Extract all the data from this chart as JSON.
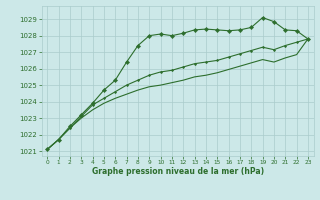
{
  "title": "Graphe pression niveau de la mer (hPa)",
  "bg_color": "#cce8e8",
  "grid_color": "#aacccc",
  "line_color": "#2d6e2d",
  "xlim": [
    -0.5,
    23.5
  ],
  "ylim": [
    1020.7,
    1029.8
  ],
  "yticks": [
    1021,
    1022,
    1023,
    1024,
    1025,
    1026,
    1027,
    1028,
    1029
  ],
  "xticks": [
    0,
    1,
    2,
    3,
    4,
    5,
    6,
    7,
    8,
    9,
    10,
    11,
    12,
    13,
    14,
    15,
    16,
    17,
    18,
    19,
    20,
    21,
    22,
    23
  ],
  "line1_x": [
    0,
    1,
    2,
    3,
    4,
    5,
    6,
    7,
    8,
    9,
    10,
    11,
    12,
    13,
    14,
    15,
    16,
    17,
    18,
    19,
    20,
    21,
    22,
    23
  ],
  "line1_y": [
    1021.1,
    1021.7,
    1022.5,
    1023.2,
    1023.9,
    1024.7,
    1025.3,
    1026.4,
    1027.4,
    1028.0,
    1028.1,
    1028.0,
    1028.15,
    1028.35,
    1028.4,
    1028.35,
    1028.3,
    1028.35,
    1028.5,
    1029.1,
    1028.85,
    1028.35,
    1028.3,
    1027.8
  ],
  "line2_x": [
    0,
    1,
    2,
    3,
    4,
    5,
    6,
    7,
    8,
    9,
    10,
    11,
    12,
    13,
    14,
    15,
    16,
    17,
    18,
    19,
    20,
    21,
    22,
    23
  ],
  "line2_y": [
    1021.1,
    1021.7,
    1022.4,
    1023.1,
    1023.8,
    1024.2,
    1024.6,
    1025.0,
    1025.3,
    1025.6,
    1025.8,
    1025.9,
    1026.1,
    1026.3,
    1026.4,
    1026.5,
    1026.7,
    1026.9,
    1027.1,
    1027.3,
    1027.15,
    1027.4,
    1027.6,
    1027.8
  ],
  "line3_x": [
    0,
    1,
    2,
    3,
    4,
    5,
    6,
    7,
    8,
    9,
    10,
    11,
    12,
    13,
    14,
    15,
    16,
    17,
    18,
    19,
    20,
    21,
    22,
    23
  ],
  "line3_y": [
    1021.1,
    1021.7,
    1022.4,
    1023.0,
    1023.5,
    1023.9,
    1024.2,
    1024.45,
    1024.7,
    1024.9,
    1025.0,
    1025.15,
    1025.3,
    1025.5,
    1025.6,
    1025.75,
    1025.95,
    1026.15,
    1026.35,
    1026.55,
    1026.4,
    1026.65,
    1026.85,
    1027.8
  ]
}
